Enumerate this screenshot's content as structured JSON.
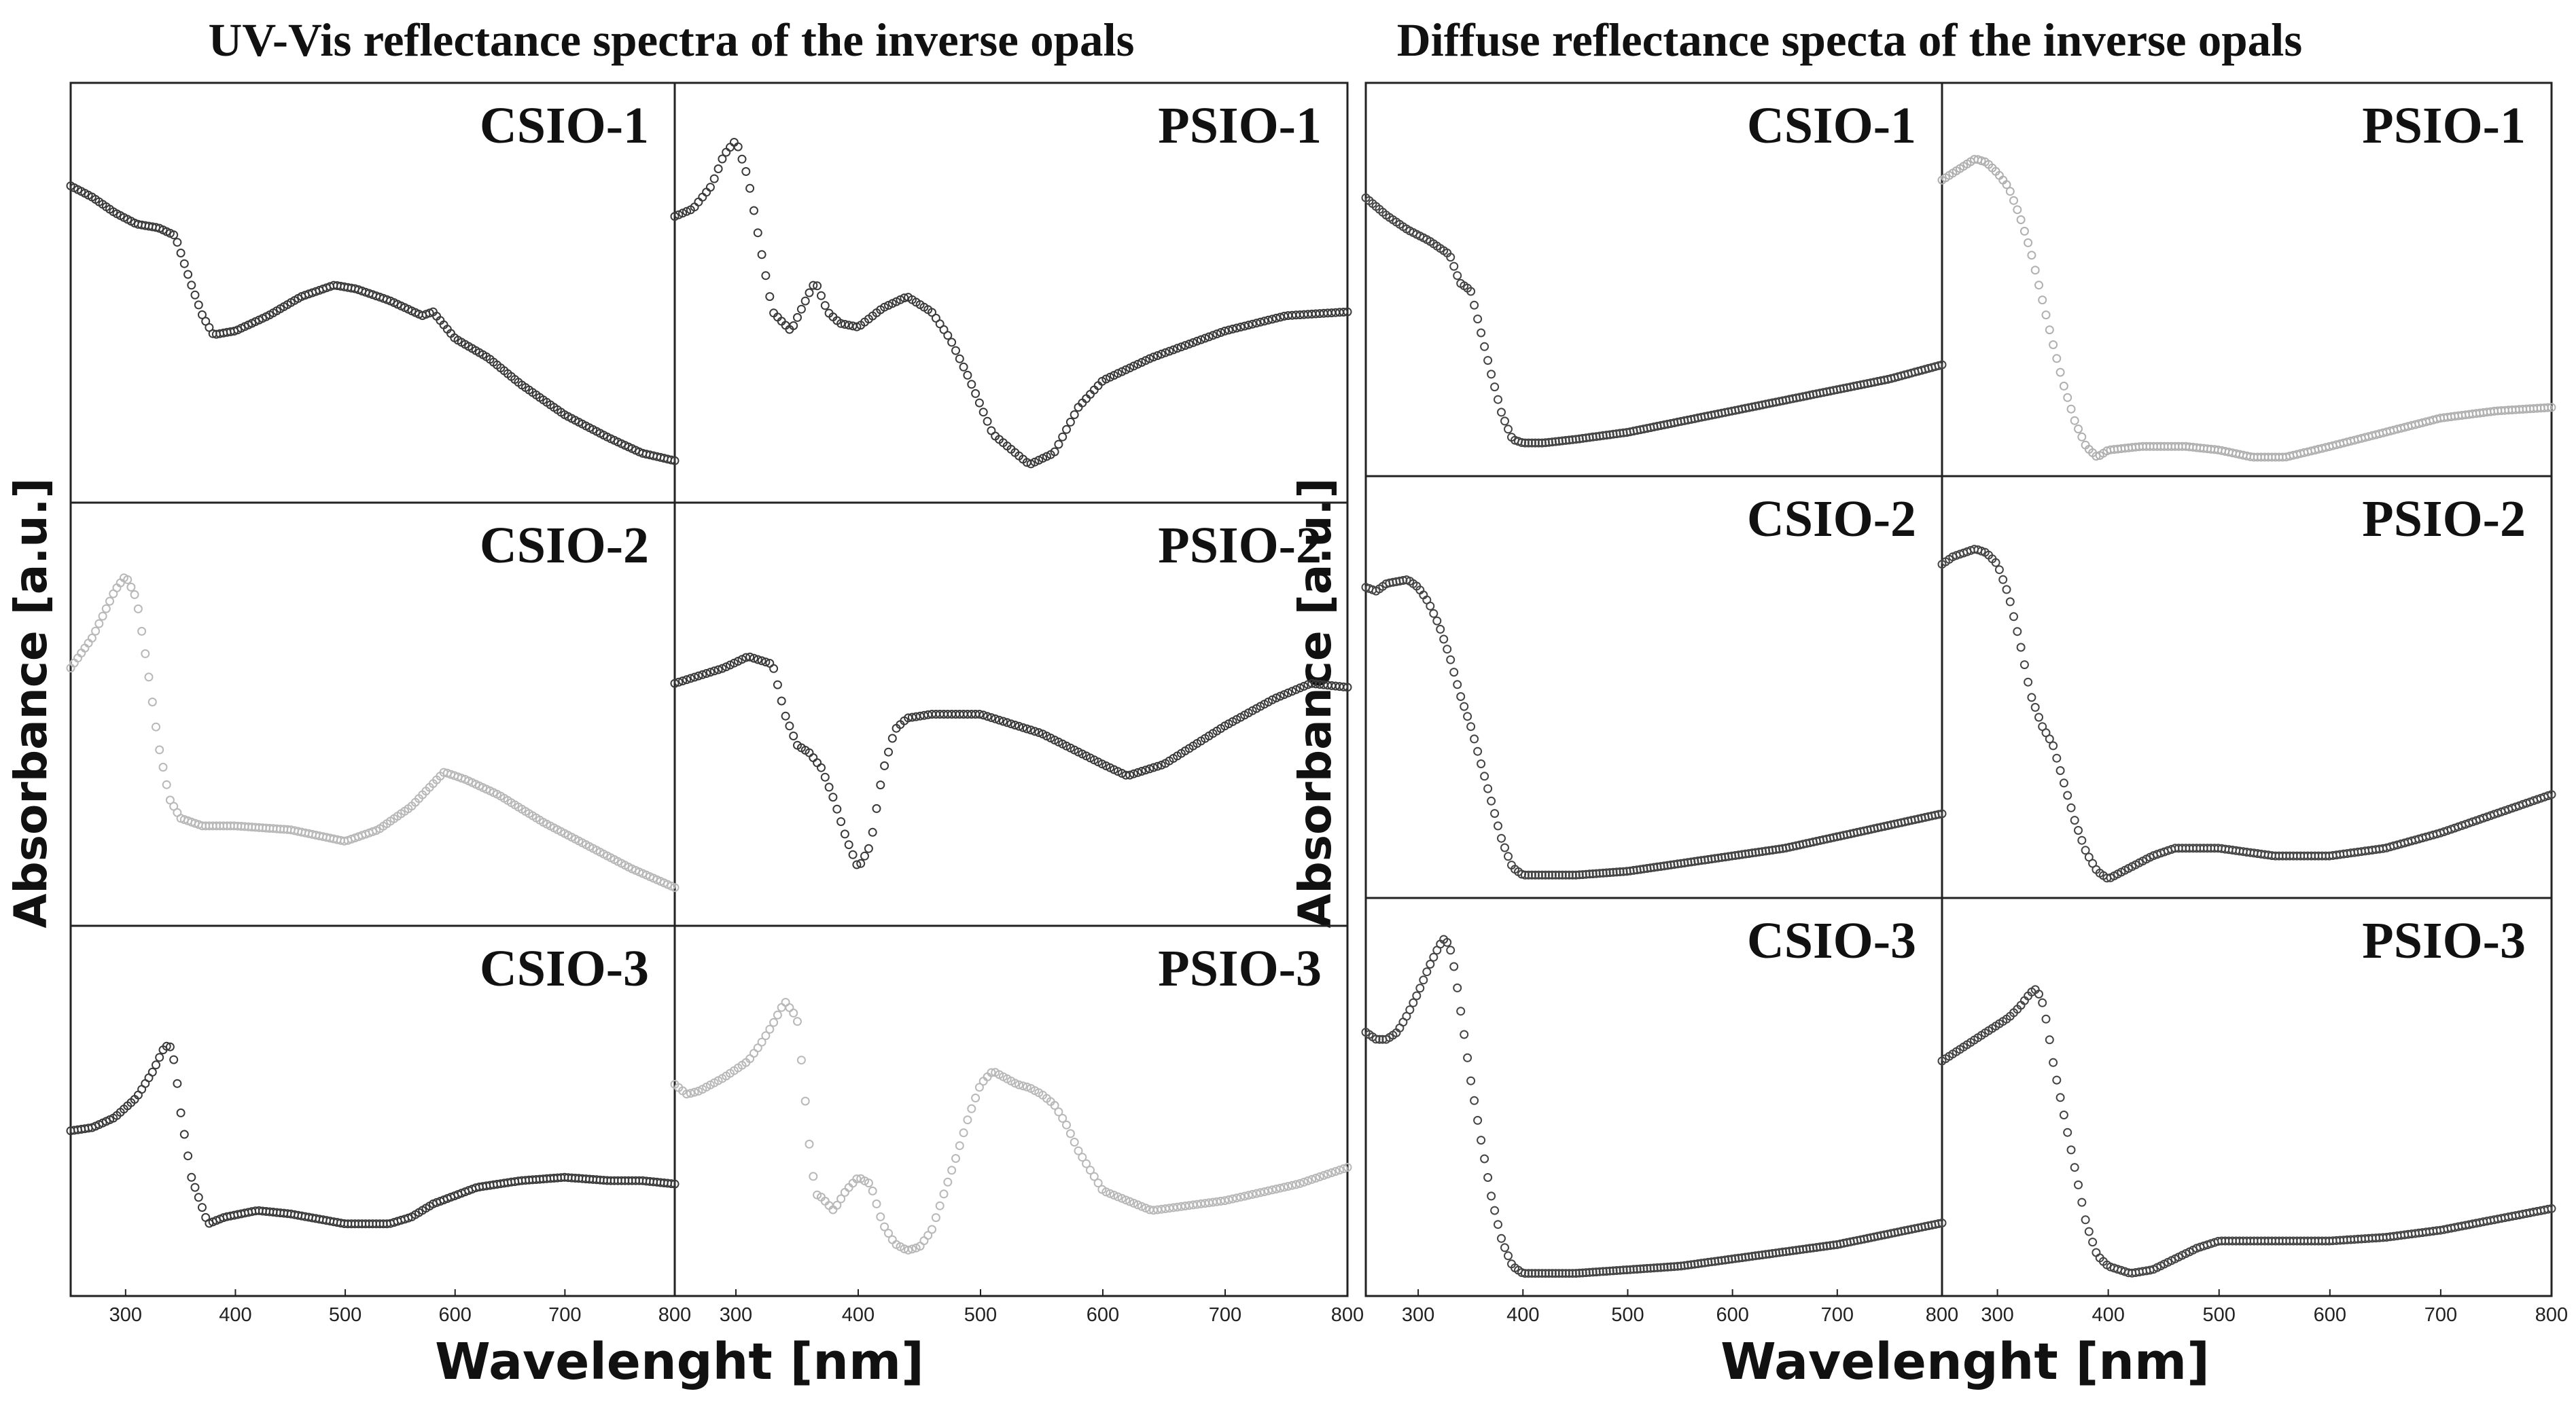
{
  "chart_data": [
    {
      "type": "scatter",
      "title": "UV-Vis reflectance spectra of the inverse opals",
      "xlabel": "Wavelenght [nm]",
      "ylabel": "Absorbance [a.u.]",
      "xlim": [
        250,
        800
      ],
      "xticks": [
        "300",
        "400",
        "500",
        "600",
        "700",
        "800"
      ],
      "grid": false,
      "panels": [
        {
          "label": "CSIO-1",
          "color": "#3a3a3a",
          "x": [
            250,
            270,
            290,
            310,
            330,
            345,
            360,
            370,
            380,
            400,
            430,
            460,
            490,
            510,
            540,
            570,
            580,
            600,
            630,
            660,
            700,
            740,
            770,
            800
          ],
          "y": [
            0.78,
            0.75,
            0.71,
            0.68,
            0.67,
            0.65,
            0.52,
            0.44,
            0.39,
            0.4,
            0.44,
            0.49,
            0.52,
            0.51,
            0.48,
            0.44,
            0.45,
            0.38,
            0.33,
            0.26,
            0.18,
            0.12,
            0.08,
            0.06
          ]
        },
        {
          "label": "PSIO-1",
          "color": "#3a3a3a",
          "x": [
            250,
            265,
            280,
            290,
            300,
            310,
            320,
            330,
            345,
            360,
            365,
            375,
            385,
            400,
            420,
            440,
            460,
            475,
            490,
            510,
            540,
            560,
            580,
            600,
            640,
            700,
            750,
            800
          ],
          "y": [
            0.7,
            0.72,
            0.78,
            0.86,
            0.9,
            0.8,
            0.62,
            0.45,
            0.4,
            0.5,
            0.53,
            0.45,
            0.42,
            0.41,
            0.46,
            0.49,
            0.45,
            0.38,
            0.28,
            0.13,
            0.05,
            0.08,
            0.2,
            0.27,
            0.33,
            0.4,
            0.44,
            0.45
          ]
        },
        {
          "label": "CSIO-2",
          "color": "#b8b8b8",
          "x": [
            250,
            270,
            290,
            300,
            310,
            320,
            330,
            340,
            350,
            370,
            400,
            450,
            500,
            530,
            560,
            590,
            610,
            640,
            680,
            720,
            760,
            800
          ],
          "y": [
            0.62,
            0.7,
            0.82,
            0.86,
            0.8,
            0.62,
            0.42,
            0.28,
            0.23,
            0.21,
            0.21,
            0.2,
            0.17,
            0.2,
            0.26,
            0.35,
            0.33,
            0.29,
            0.22,
            0.16,
            0.1,
            0.05
          ]
        },
        {
          "label": "PSIO-2",
          "color": "#3a3a3a",
          "x": [
            250,
            270,
            290,
            310,
            330,
            340,
            350,
            360,
            370,
            380,
            390,
            400,
            410,
            420,
            430,
            440,
            460,
            500,
            550,
            600,
            620,
            650,
            700,
            740,
            770,
            800
          ],
          "y": [
            0.58,
            0.6,
            0.62,
            0.65,
            0.63,
            0.5,
            0.42,
            0.4,
            0.36,
            0.28,
            0.18,
            0.1,
            0.16,
            0.35,
            0.46,
            0.49,
            0.5,
            0.5,
            0.45,
            0.37,
            0.34,
            0.37,
            0.47,
            0.54,
            0.58,
            0.57
          ]
        },
        {
          "label": "CSIO-3",
          "color": "#3a3a3a",
          "x": [
            250,
            270,
            290,
            310,
            325,
            335,
            340,
            345,
            350,
            360,
            375,
            390,
            420,
            450,
            500,
            540,
            560,
            580,
            620,
            660,
            700,
            740,
            770,
            800
          ],
          "y": [
            0.44,
            0.45,
            0.48,
            0.54,
            0.62,
            0.69,
            0.7,
            0.64,
            0.5,
            0.3,
            0.16,
            0.18,
            0.2,
            0.19,
            0.16,
            0.16,
            0.18,
            0.22,
            0.27,
            0.29,
            0.3,
            0.29,
            0.29,
            0.28
          ]
        },
        {
          "label": "PSIO-3",
          "color": "#b8b8b8",
          "x": [
            250,
            260,
            270,
            290,
            310,
            320,
            330,
            340,
            350,
            355,
            360,
            365,
            370,
            380,
            390,
            400,
            410,
            420,
            430,
            440,
            450,
            460,
            470,
            480,
            490,
            500,
            510,
            520,
            530,
            540,
            550,
            560,
            570,
            580,
            600,
            640,
            700,
            760,
            800
          ],
          "y": [
            0.58,
            0.55,
            0.56,
            0.6,
            0.65,
            0.7,
            0.76,
            0.83,
            0.78,
            0.6,
            0.4,
            0.25,
            0.24,
            0.2,
            0.26,
            0.3,
            0.28,
            0.16,
            0.1,
            0.08,
            0.09,
            0.14,
            0.25,
            0.36,
            0.48,
            0.58,
            0.62,
            0.6,
            0.58,
            0.57,
            0.55,
            0.52,
            0.46,
            0.38,
            0.26,
            0.2,
            0.23,
            0.28,
            0.33
          ]
        }
      ]
    },
    {
      "type": "scatter",
      "title": "Diffuse reflectance specta of the inverse opals",
      "xlabel": "Wavelenght [nm]",
      "ylabel": "Absorbance [a.u.]",
      "xlim": [
        250,
        800
      ],
      "xticks": [
        "300",
        "400",
        "500",
        "600",
        "700",
        "800"
      ],
      "grid": false,
      "panels": [
        {
          "label": "CSIO-1",
          "color": "#444444",
          "x": [
            250,
            270,
            290,
            310,
            330,
            340,
            350,
            360,
            370,
            380,
            390,
            400,
            420,
            450,
            500,
            550,
            600,
            650,
            700,
            750,
            800
          ],
          "y": [
            0.73,
            0.68,
            0.64,
            0.61,
            0.57,
            0.49,
            0.47,
            0.35,
            0.23,
            0.12,
            0.05,
            0.04,
            0.04,
            0.05,
            0.07,
            0.1,
            0.13,
            0.16,
            0.19,
            0.22,
            0.26
          ]
        },
        {
          "label": "PSIO-1",
          "color": "#b0b0b0",
          "x": [
            250,
            260,
            270,
            280,
            290,
            300,
            310,
            320,
            330,
            340,
            350,
            360,
            370,
            380,
            390,
            400,
            430,
            470,
            500,
            530,
            560,
            600,
            650,
            700,
            750,
            800
          ],
          "y": [
            0.78,
            0.8,
            0.82,
            0.84,
            0.83,
            0.8,
            0.76,
            0.68,
            0.58,
            0.45,
            0.32,
            0.2,
            0.1,
            0.03,
            0.0,
            0.02,
            0.03,
            0.03,
            0.02,
            0.0,
            0.0,
            0.03,
            0.07,
            0.11,
            0.13,
            0.14
          ]
        },
        {
          "label": "CSIO-2",
          "color": "#444444",
          "x": [
            250,
            260,
            270,
            290,
            300,
            310,
            320,
            330,
            340,
            350,
            360,
            370,
            380,
            390,
            400,
            420,
            450,
            500,
            550,
            600,
            650,
            700,
            750,
            800
          ],
          "y": [
            0.76,
            0.75,
            0.77,
            0.78,
            0.76,
            0.72,
            0.66,
            0.58,
            0.48,
            0.4,
            0.3,
            0.2,
            0.1,
            0.03,
            0.01,
            0.01,
            0.01,
            0.02,
            0.04,
            0.06,
            0.08,
            0.11,
            0.14,
            0.17
          ]
        },
        {
          "label": "PSIO-2",
          "color": "#444444",
          "x": [
            250,
            260,
            280,
            290,
            300,
            310,
            320,
            330,
            340,
            350,
            360,
            370,
            380,
            390,
            400,
            420,
            440,
            460,
            480,
            500,
            550,
            600,
            650,
            700,
            750,
            800
          ],
          "y": [
            0.82,
            0.84,
            0.86,
            0.85,
            0.82,
            0.74,
            0.62,
            0.48,
            0.4,
            0.35,
            0.25,
            0.15,
            0.07,
            0.02,
            0.0,
            0.03,
            0.06,
            0.08,
            0.08,
            0.08,
            0.06,
            0.06,
            0.08,
            0.12,
            0.17,
            0.22
          ]
        },
        {
          "label": "CSIO-3",
          "color": "#444444",
          "x": [
            250,
            260,
            270,
            280,
            290,
            300,
            310,
            320,
            325,
            330,
            335,
            340,
            345,
            350,
            360,
            370,
            380,
            390,
            400,
            420,
            450,
            500,
            550,
            600,
            650,
            700,
            750,
            800
          ],
          "y": [
            0.68,
            0.66,
            0.66,
            0.68,
            0.73,
            0.79,
            0.86,
            0.92,
            0.94,
            0.92,
            0.85,
            0.75,
            0.65,
            0.55,
            0.38,
            0.22,
            0.1,
            0.03,
            0.01,
            0.01,
            0.01,
            0.02,
            0.03,
            0.05,
            0.07,
            0.09,
            0.12,
            0.15
          ]
        },
        {
          "label": "PSIO-3",
          "color": "#444444",
          "x": [
            250,
            270,
            290,
            310,
            320,
            330,
            335,
            340,
            345,
            350,
            360,
            370,
            380,
            390,
            400,
            410,
            420,
            440,
            460,
            480,
            500,
            550,
            600,
            650,
            700,
            750,
            800
          ],
          "y": [
            0.6,
            0.64,
            0.68,
            0.72,
            0.75,
            0.79,
            0.8,
            0.77,
            0.7,
            0.6,
            0.45,
            0.3,
            0.15,
            0.06,
            0.03,
            0.02,
            0.01,
            0.02,
            0.05,
            0.08,
            0.1,
            0.1,
            0.1,
            0.11,
            0.13,
            0.16,
            0.19
          ]
        }
      ]
    }
  ]
}
